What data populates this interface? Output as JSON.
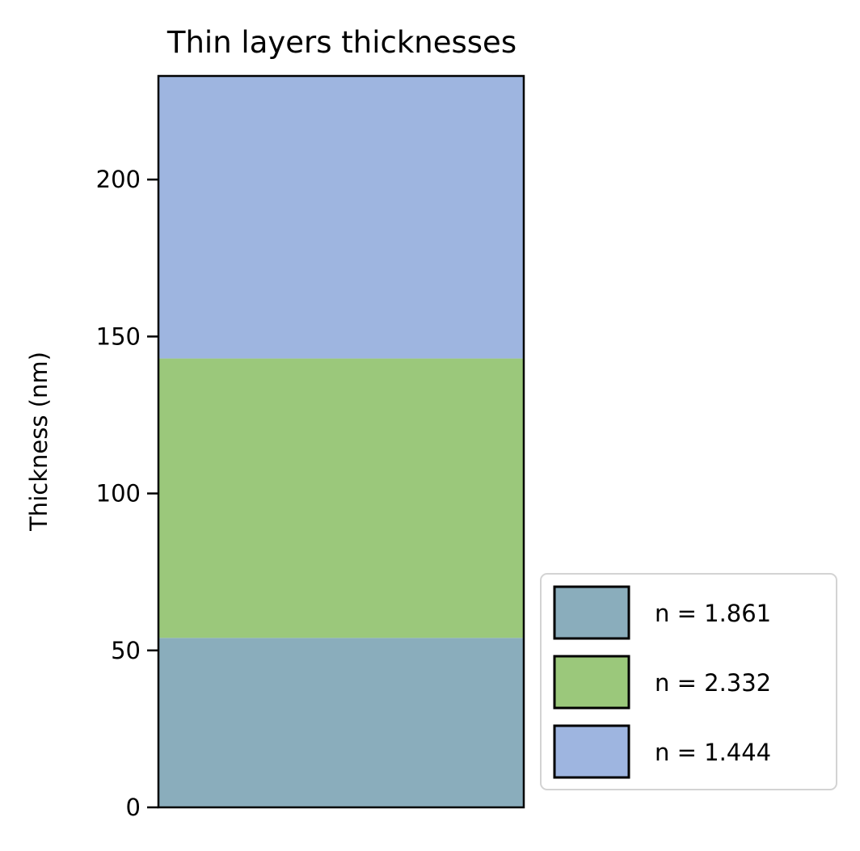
{
  "chart_data": {
    "type": "bar",
    "stacked": true,
    "title": "Thin layers thicknesses",
    "xlabel": "",
    "ylabel": "Thickness (nm)",
    "ylim": [
      0,
      233
    ],
    "yticks": [
      "0",
      "50",
      "100",
      "150",
      "200"
    ],
    "grid": false,
    "legend_position": "lower-right-outside",
    "series": [
      {
        "name": "n = 1.861",
        "value": 54,
        "color": "#8aadbc"
      },
      {
        "name": "n = 2.332",
        "value": 89,
        "color": "#9bc87b"
      },
      {
        "name": "n = 1.444",
        "value": 90,
        "color": "#9eb5e0"
      }
    ]
  }
}
